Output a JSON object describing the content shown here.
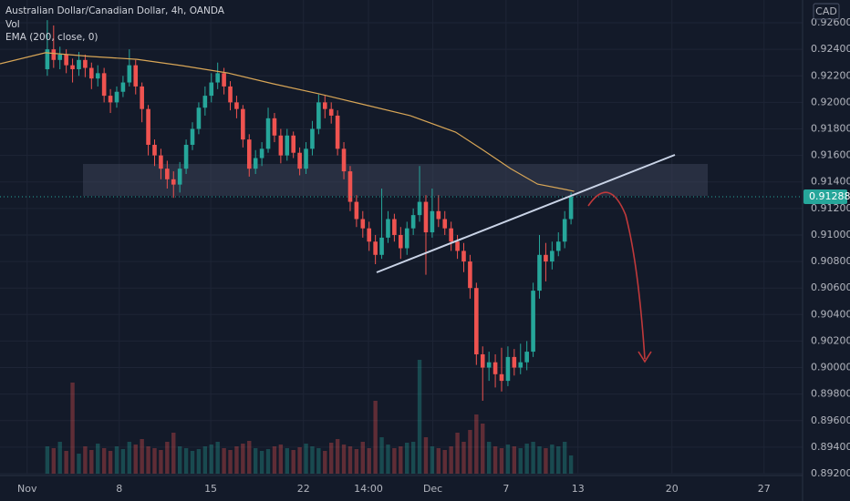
{
  "chart_data": {
    "type": "candlestick",
    "title": "Australian Dollar/Canadian Dollar, 4h, OANDA",
    "currency": "CAD",
    "up_color": "#26a69a",
    "down_color": "#ef5350",
    "open": [
      0.9225,
      0.924,
      0.9232,
      0.9236,
      0.9228,
      0.9225,
      0.9232,
      0.9226,
      0.9218,
      0.9222,
      0.9205,
      0.92,
      0.9208,
      0.9215,
      0.9228,
      0.9212,
      0.9195,
      0.9168,
      0.916,
      0.915,
      0.9142,
      0.9138,
      0.915,
      0.9168,
      0.918,
      0.9196,
      0.9205,
      0.9215,
      0.9222,
      0.9212,
      0.92,
      0.9195,
      0.9172,
      0.915,
      0.9158,
      0.9165,
      0.9188,
      0.9175,
      0.916,
      0.9175,
      0.9162,
      0.915,
      0.9165,
      0.918,
      0.92,
      0.9195,
      0.919,
      0.9165,
      0.9148,
      0.9125,
      0.9112,
      0.9105,
      0.9095,
      0.9085,
      0.9098,
      0.9112,
      0.91,
      0.909,
      0.9105,
      0.9115,
      0.9125,
      0.9102,
      0.9118,
      0.9112,
      0.9105,
      0.9095,
      0.9088,
      0.908,
      0.906,
      0.901,
      0.9,
      0.9004,
      0.8995,
      0.899,
      0.9008,
      0.9,
      0.9004,
      0.9012,
      0.9058,
      0.9085,
      0.908,
      0.9088,
      0.9095,
      0.9112
    ],
    "high": [
      0.9262,
      0.9258,
      0.9242,
      0.924,
      0.9233,
      0.9238,
      0.9236,
      0.923,
      0.9228,
      0.9226,
      0.921,
      0.9212,
      0.922,
      0.924,
      0.9232,
      0.9215,
      0.9198,
      0.9172,
      0.9165,
      0.9156,
      0.9148,
      0.9155,
      0.9172,
      0.9185,
      0.92,
      0.9212,
      0.9222,
      0.923,
      0.9226,
      0.9216,
      0.9205,
      0.9198,
      0.9176,
      0.9164,
      0.917,
      0.9196,
      0.9192,
      0.918,
      0.918,
      0.9178,
      0.9166,
      0.917,
      0.9186,
      0.9206,
      0.9205,
      0.92,
      0.9194,
      0.917,
      0.9152,
      0.913,
      0.9118,
      0.911,
      0.91,
      0.9135,
      0.9118,
      0.9116,
      0.9106,
      0.911,
      0.912,
      0.9152,
      0.913,
      0.9135,
      0.913,
      0.9118,
      0.911,
      0.91,
      0.9094,
      0.9085,
      0.9064,
      0.9016,
      0.9012,
      0.901,
      0.9015,
      0.9016,
      0.9014,
      0.9018,
      0.902,
      0.9064,
      0.91,
      0.9094,
      0.9095,
      0.9102,
      0.9118,
      0.9132
    ],
    "low": [
      0.922,
      0.9226,
      0.9225,
      0.9222,
      0.9215,
      0.922,
      0.9219,
      0.921,
      0.9212,
      0.92,
      0.9192,
      0.9196,
      0.9204,
      0.9212,
      0.9206,
      0.9185,
      0.916,
      0.9152,
      0.9142,
      0.9135,
      0.9128,
      0.9132,
      0.9146,
      0.9164,
      0.9176,
      0.919,
      0.92,
      0.921,
      0.9206,
      0.9194,
      0.9188,
      0.9166,
      0.9144,
      0.9146,
      0.9152,
      0.9162,
      0.917,
      0.9154,
      0.9156,
      0.9158,
      0.9145,
      0.9146,
      0.916,
      0.9176,
      0.9188,
      0.9184,
      0.916,
      0.9142,
      0.9118,
      0.9106,
      0.9098,
      0.9088,
      0.9078,
      0.9082,
      0.9094,
      0.9095,
      0.9082,
      0.9085,
      0.91,
      0.911,
      0.907,
      0.9098,
      0.9106,
      0.91,
      0.9088,
      0.9082,
      0.9072,
      0.9052,
      0.9002,
      0.8975,
      0.899,
      0.8985,
      0.8982,
      0.8986,
      0.8994,
      0.8995,
      0.8998,
      0.9008,
      0.9052,
      0.9065,
      0.9074,
      0.9084,
      0.909,
      0.9108
    ],
    "close": [
      0.924,
      0.9232,
      0.9236,
      0.9228,
      0.9225,
      0.9232,
      0.9226,
      0.9218,
      0.9222,
      0.9205,
      0.92,
      0.9208,
      0.9215,
      0.9228,
      0.9212,
      0.9195,
      0.9168,
      0.916,
      0.915,
      0.9142,
      0.9138,
      0.915,
      0.9168,
      0.918,
      0.9196,
      0.9205,
      0.9215,
      0.9222,
      0.9212,
      0.92,
      0.9195,
      0.9172,
      0.915,
      0.9158,
      0.9165,
      0.9188,
      0.9175,
      0.916,
      0.9175,
      0.9162,
      0.915,
      0.9165,
      0.918,
      0.92,
      0.9195,
      0.919,
      0.9165,
      0.9148,
      0.9125,
      0.9112,
      0.9105,
      0.9095,
      0.9085,
      0.9098,
      0.9112,
      0.91,
      0.909,
      0.9105,
      0.9115,
      0.9125,
      0.9102,
      0.9118,
      0.9112,
      0.9105,
      0.9095,
      0.9088,
      0.908,
      0.906,
      0.901,
      0.9,
      0.9004,
      0.8995,
      0.899,
      0.9008,
      0.9,
      0.9004,
      0.9012,
      0.9058,
      0.9085,
      0.908,
      0.9088,
      0.9095,
      0.9112,
      0.91288
    ],
    "volume": {
      "name": "Vol",
      "ylim": [
        0,
        130
      ],
      "values": [
        30,
        28,
        35,
        25,
        100,
        22,
        30,
        26,
        33,
        28,
        25,
        30,
        27,
        35,
        32,
        38,
        30,
        28,
        26,
        35,
        45,
        30,
        28,
        25,
        27,
        30,
        32,
        35,
        28,
        26,
        30,
        33,
        36,
        28,
        25,
        27,
        30,
        32,
        28,
        26,
        29,
        33,
        30,
        28,
        25,
        34,
        38,
        32,
        30,
        27,
        35,
        28,
        80,
        40,
        32,
        28,
        30,
        34,
        35,
        125,
        40,
        30,
        28,
        26,
        30,
        45,
        35,
        48,
        65,
        55,
        35,
        30,
        28,
        32,
        30,
        28,
        33,
        35,
        30,
        28,
        32,
        30,
        35,
        20
      ]
    },
    "ema": {
      "name": "EMA (200, close, 0)",
      "color": "#d8a657",
      "x": [
        -7.5,
        -0.3,
        6.9,
        14.2,
        21.4,
        28.6,
        35.8,
        43.1,
        50.3,
        57.5,
        64.7,
        69.1,
        73.4,
        77.7,
        82.1,
        83.5
      ],
      "values": [
        0.92291,
        0.92374,
        0.92346,
        0.92325,
        0.92277,
        0.92222,
        0.9214,
        0.92064,
        0.91982,
        0.919,
        0.91776,
        0.91639,
        0.91501,
        0.91384,
        0.91343,
        0.91329
      ]
    },
    "last_price": {
      "value": 0.91288,
      "label": "0.91288"
    },
    "xlim": [
      -7.5,
      119.7
    ],
    "xticks": [
      {
        "value": -3.2,
        "label": "Nov"
      },
      {
        "value": 11.4,
        "label": "8"
      },
      {
        "value": 25.9,
        "label": "15"
      },
      {
        "value": 40.6,
        "label": "22"
      },
      {
        "value": 50.9,
        "label": "14:00"
      },
      {
        "value": 61.1,
        "label": "Dec"
      },
      {
        "value": 72.7,
        "label": "7"
      },
      {
        "value": 84.1,
        "label": "13"
      },
      {
        "value": 99.0,
        "label": "20"
      },
      {
        "value": 113.6,
        "label": "27"
      }
    ],
    "ylim": [
      0.892,
      0.92772
    ],
    "yticks": [
      {
        "value": 0.926,
        "label": "0.92600"
      },
      {
        "value": 0.924,
        "label": "0.92400"
      },
      {
        "value": 0.922,
        "label": "0.92200"
      },
      {
        "value": 0.92,
        "label": "0.92000"
      },
      {
        "value": 0.918,
        "label": "0.91800"
      },
      {
        "value": 0.916,
        "label": "0.91600"
      },
      {
        "value": 0.914,
        "label": "0.91400"
      },
      {
        "value": 0.912,
        "label": "0.91200"
      },
      {
        "value": 0.91,
        "label": "0.91000"
      },
      {
        "value": 0.908,
        "label": "0.90800"
      },
      {
        "value": 0.906,
        "label": "0.90600"
      },
      {
        "value": 0.904,
        "label": "0.90400"
      },
      {
        "value": 0.902,
        "label": "0.90200"
      },
      {
        "value": 0.9,
        "label": "0.90000"
      },
      {
        "value": 0.898,
        "label": "0.89800"
      },
      {
        "value": 0.896,
        "label": "0.89600"
      },
      {
        "value": 0.894,
        "label": "0.89400"
      },
      {
        "value": 0.892,
        "label": "0.89200"
      }
    ],
    "grid": true
  }
}
